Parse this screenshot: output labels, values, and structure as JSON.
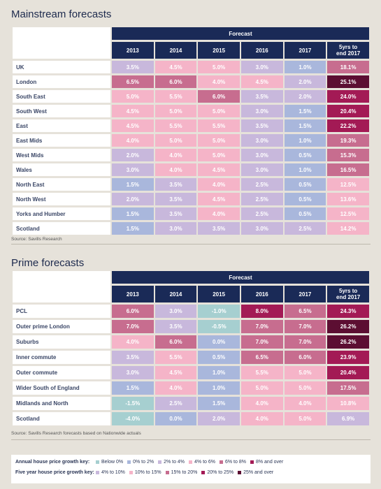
{
  "mainstream": {
    "title": "Mainstream forecasts",
    "forecast_label": "Forecast",
    "columns": [
      "2013",
      "2014",
      "2015",
      "2016",
      "2017",
      "5yrs to\nend 2017"
    ],
    "source": "Source: Savills Research",
    "rows": [
      {
        "region": "UK",
        "values": [
          "3.5%",
          "4.5%",
          "5.0%",
          "3.0%",
          "1.0%",
          "18.1%"
        ]
      },
      {
        "region": "London",
        "values": [
          "6.5%",
          "6.0%",
          "4.0%",
          "4.5%",
          "2.0%",
          "25.1%"
        ]
      },
      {
        "region": "South East",
        "values": [
          "5.0%",
          "5.5%",
          "6.0%",
          "3.5%",
          "2.0%",
          "24.0%"
        ]
      },
      {
        "region": "South West",
        "values": [
          "4.5%",
          "5.0%",
          "5.0%",
          "3.0%",
          "1.5%",
          "20.4%"
        ]
      },
      {
        "region": "East",
        "values": [
          "4.5%",
          "5.5%",
          "5.5%",
          "3.5%",
          "1.5%",
          "22.2%"
        ]
      },
      {
        "region": "East Mids",
        "values": [
          "4.0%",
          "5.0%",
          "5.0%",
          "3.0%",
          "1.0%",
          "19.3%"
        ]
      },
      {
        "region": "West Mids",
        "values": [
          "2.0%",
          "4.0%",
          "5.0%",
          "3.0%",
          "0.5%",
          "15.3%"
        ]
      },
      {
        "region": "Wales",
        "values": [
          "3.0%",
          "4.0%",
          "4.5%",
          "3.0%",
          "1.0%",
          "16.5%"
        ]
      },
      {
        "region": "North East",
        "values": [
          "1.5%",
          "3.5%",
          "4.0%",
          "2.5%",
          "0.5%",
          "12.5%"
        ]
      },
      {
        "region": "North West",
        "values": [
          "2.0%",
          "3.5%",
          "4.5%",
          "2.5%",
          "0.5%",
          "13.6%"
        ]
      },
      {
        "region": "Yorks and Humber",
        "values": [
          "1.5%",
          "3.5%",
          "4.0%",
          "2.5%",
          "0.5%",
          "12.5%"
        ]
      },
      {
        "region": "Scotland",
        "values": [
          "1.5%",
          "3.0%",
          "3.5%",
          "3.0%",
          "2.5%",
          "14.2%"
        ]
      }
    ]
  },
  "prime": {
    "title": "Prime forecasts",
    "forecast_label": "Forecast",
    "columns": [
      "2013",
      "2014",
      "2015",
      "2016",
      "2017",
      "5yrs to\nend 2017"
    ],
    "source": "Source: Savills Research forecasts based on Nationwide actuals",
    "rows": [
      {
        "region": "PCL",
        "values": [
          "6.0%",
          "3.0%",
          "-1.0%",
          "8.0%",
          "6.5%",
          "24.3%"
        ]
      },
      {
        "region": "Outer prime London",
        "values": [
          "7.0%",
          "3.5%",
          "-0.5%",
          "7.0%",
          "7.0%",
          "26.2%"
        ]
      },
      {
        "region": "Suburbs",
        "values": [
          "4.0%",
          "6.0%",
          "0.0%",
          "7.0%",
          "7.0%",
          "26.2%"
        ]
      },
      {
        "region": "Inner commute",
        "values": [
          "3.5%",
          "5.5%",
          "0.5%",
          "6.5%",
          "6.0%",
          "23.9%"
        ]
      },
      {
        "region": "Outer commute",
        "values": [
          "3.0%",
          "4.5%",
          "1.0%",
          "5.5%",
          "5.0%",
          "20.4%"
        ]
      },
      {
        "region": "Wider South of England",
        "values": [
          "1.5%",
          "4.0%",
          "1.0%",
          "5.0%",
          "5.0%",
          "17.5%"
        ]
      },
      {
        "region": "Midlands and North",
        "values": [
          "-1.5%",
          "2.5%",
          "1.5%",
          "4.0%",
          "4.0%",
          "10.8%"
        ]
      },
      {
        "region": "Scotland",
        "values": [
          "-4.0%",
          "0.0%",
          "2.0%",
          "4.0%",
          "5.0%",
          "6.9%"
        ]
      }
    ]
  },
  "key": {
    "annual_label": "Annual house price growth key:",
    "annual_items": [
      {
        "label": "Below 0%",
        "color": "#a6cfd0"
      },
      {
        "label": "0% to 2%",
        "color": "#a9b7dc"
      },
      {
        "label": "2% to 4%",
        "color": "#c8b8dc"
      },
      {
        "label": "4% to 6%",
        "color": "#f5b4c8"
      },
      {
        "label": "6% to 8%",
        "color": "#c76d8f"
      },
      {
        "label": "8% and over",
        "color": "#a31a55"
      }
    ],
    "five_year_label": "Five year house price growth key:",
    "five_year_items": [
      {
        "label": "4% to 10%",
        "color": "#c8b8dc"
      },
      {
        "label": "10% to 15%",
        "color": "#f5b4c8"
      },
      {
        "label": "15% to 20%",
        "color": "#c76d8f"
      },
      {
        "label": "20% to 25%",
        "color": "#a31a55"
      },
      {
        "label": "25% and over",
        "color": "#5c0e32"
      }
    ]
  },
  "chart_data": [
    {
      "type": "table",
      "title": "Mainstream forecasts",
      "categories": [
        "UK",
        "London",
        "South East",
        "South West",
        "East",
        "East Mids",
        "West Mids",
        "Wales",
        "North East",
        "North West",
        "Yorks and Humber",
        "Scotland"
      ],
      "series": [
        {
          "name": "2013",
          "values": [
            3.5,
            6.5,
            5.0,
            4.5,
            4.5,
            4.0,
            2.0,
            3.0,
            1.5,
            2.0,
            1.5,
            1.5
          ]
        },
        {
          "name": "2014",
          "values": [
            4.5,
            6.0,
            5.5,
            5.0,
            5.5,
            5.0,
            4.0,
            4.0,
            3.5,
            3.5,
            3.5,
            3.0
          ]
        },
        {
          "name": "2015",
          "values": [
            5.0,
            4.0,
            6.0,
            5.0,
            5.5,
            5.0,
            5.0,
            4.5,
            4.0,
            4.5,
            4.0,
            3.5
          ]
        },
        {
          "name": "2016",
          "values": [
            3.0,
            4.5,
            3.5,
            3.0,
            3.5,
            3.0,
            3.0,
            3.0,
            2.5,
            2.5,
            2.5,
            3.0
          ]
        },
        {
          "name": "2017",
          "values": [
            1.0,
            2.0,
            2.0,
            1.5,
            1.5,
            1.0,
            0.5,
            1.0,
            0.5,
            0.5,
            0.5,
            2.5
          ]
        },
        {
          "name": "5yrs to end 2017",
          "values": [
            18.1,
            25.1,
            24.0,
            20.4,
            22.2,
            19.3,
            15.3,
            16.5,
            12.5,
            13.6,
            12.5,
            14.2
          ]
        }
      ]
    },
    {
      "type": "table",
      "title": "Prime forecasts",
      "categories": [
        "PCL",
        "Outer prime London",
        "Suburbs",
        "Inner commute",
        "Outer commute",
        "Wider South of England",
        "Midlands and North",
        "Scotland"
      ],
      "series": [
        {
          "name": "2013",
          "values": [
            6.0,
            7.0,
            4.0,
            3.5,
            3.0,
            1.5,
            -1.5,
            -4.0
          ]
        },
        {
          "name": "2014",
          "values": [
            3.0,
            3.5,
            6.0,
            5.5,
            4.5,
            4.0,
            2.5,
            0.0
          ]
        },
        {
          "name": "2015",
          "values": [
            -1.0,
            -0.5,
            0.0,
            0.5,
            1.0,
            1.0,
            1.5,
            2.0
          ]
        },
        {
          "name": "2016",
          "values": [
            8.0,
            7.0,
            7.0,
            6.5,
            5.5,
            5.0,
            4.0,
            4.0
          ]
        },
        {
          "name": "2017",
          "values": [
            6.5,
            7.0,
            7.0,
            6.0,
            5.0,
            5.0,
            4.0,
            5.0
          ]
        },
        {
          "name": "5yrs to end 2017",
          "values": [
            24.3,
            26.2,
            26.2,
            23.9,
            20.4,
            17.5,
            10.8,
            6.9
          ]
        }
      ]
    }
  ]
}
